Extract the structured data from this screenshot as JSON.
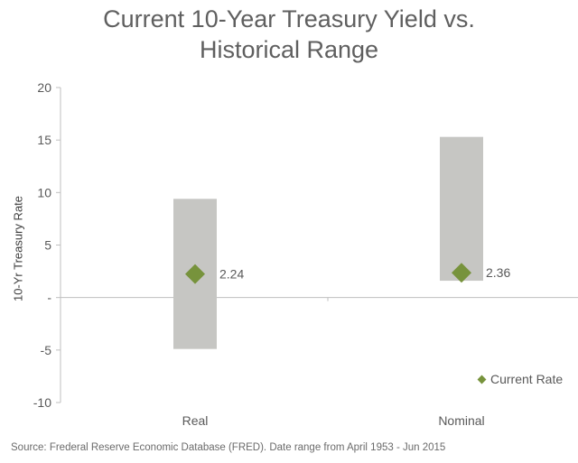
{
  "title_line1": "Current 10-Year Treasury Yield vs.",
  "title_line2": "Historical Range",
  "source": "Source: Frederal Reserve Economic Database (FRED). Date range from April 1953 - Jun 2015",
  "chart_data": {
    "type": "bar",
    "title": "Current 10-Year Treasury Yield vs. Historical Range",
    "ylabel": "10-Yr Treasury Rate",
    "xlabel": "",
    "ylim": [
      -10,
      20
    ],
    "yticks": [
      -10,
      -5,
      0,
      5,
      10,
      15,
      20
    ],
    "ytick_labels": [
      "-10",
      "-5",
      "-",
      "5",
      "10",
      "15",
      "20"
    ],
    "categories": [
      "Real",
      "Nominal"
    ],
    "ranges": [
      {
        "category": "Real",
        "low": -4.9,
        "high": 9.4
      },
      {
        "category": "Nominal",
        "low": 1.6,
        "high": 15.3
      }
    ],
    "series": [
      {
        "name": "Current Rate",
        "values": [
          2.24,
          2.36
        ],
        "labels": [
          "2.24",
          "2.36"
        ]
      }
    ],
    "legend": "bottom-right",
    "grid": false,
    "colors": {
      "range": "#c6c6c3",
      "marker": "#77933c",
      "axis": "#bfbfbf"
    }
  }
}
